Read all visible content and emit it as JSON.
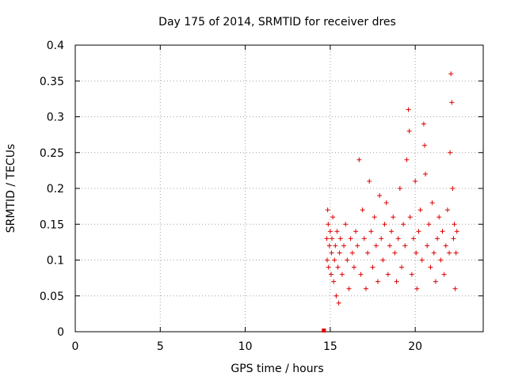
{
  "chart_data": {
    "type": "scatter",
    "title": "Day 175 of 2014, SRMTID for receiver dres",
    "xlabel": "GPS time / hours",
    "ylabel": "SRMTID / TECUs",
    "xlim": [
      0,
      24
    ],
    "ylim": [
      0,
      0.4
    ],
    "x_ticks": [
      0,
      5,
      10,
      15,
      20
    ],
    "x_tick_labels": [
      "0",
      "5",
      "10",
      "15",
      "20"
    ],
    "y_ticks": [
      0,
      0.05,
      0.1,
      0.15,
      0.2,
      0.25,
      0.3,
      0.35,
      0.4
    ],
    "y_tick_labels": [
      "0",
      "0.05",
      "0.1",
      "0.15",
      "0.2",
      "0.25",
      "0.3",
      "0.35",
      "0.4"
    ],
    "grid": true,
    "series": [
      {
        "name": "SRMTID",
        "color": "#e00000",
        "marker": "plus",
        "zero_points": {
          "x": [
            14.6,
            14.65
          ],
          "y": [
            0.0,
            0.0
          ]
        },
        "x": [
          14.8,
          14.82,
          14.85,
          14.88,
          14.9,
          14.95,
          15.0,
          15.05,
          15.08,
          15.1,
          15.15,
          15.2,
          15.25,
          15.3,
          15.35,
          15.4,
          15.45,
          15.5,
          15.55,
          15.6,
          15.7,
          15.8,
          15.9,
          16.0,
          16.1,
          16.2,
          16.3,
          16.4,
          16.5,
          16.6,
          16.7,
          16.8,
          16.9,
          17.0,
          17.1,
          17.2,
          17.3,
          17.4,
          17.5,
          17.6,
          17.7,
          17.8,
          17.9,
          18.0,
          18.1,
          18.2,
          18.3,
          18.4,
          18.5,
          18.6,
          18.7,
          18.8,
          18.9,
          19.0,
          19.1,
          19.2,
          19.3,
          19.4,
          19.5,
          19.6,
          19.65,
          19.7,
          19.8,
          19.9,
          20.0,
          20.05,
          20.1,
          20.2,
          20.3,
          20.4,
          20.5,
          20.55,
          20.6,
          20.7,
          20.8,
          20.9,
          21.0,
          21.1,
          21.2,
          21.3,
          21.4,
          21.5,
          21.6,
          21.7,
          21.8,
          21.9,
          22.0,
          22.05,
          22.1,
          22.15,
          22.2,
          22.25,
          22.3,
          22.35,
          22.4,
          22.45
        ],
        "y": [
          0.13,
          0.1,
          0.17,
          0.15,
          0.09,
          0.12,
          0.14,
          0.08,
          0.11,
          0.13,
          0.16,
          0.07,
          0.1,
          0.12,
          0.05,
          0.14,
          0.09,
          0.04,
          0.11,
          0.13,
          0.08,
          0.12,
          0.15,
          0.1,
          0.06,
          0.13,
          0.11,
          0.09,
          0.14,
          0.12,
          0.24,
          0.08,
          0.17,
          0.13,
          0.06,
          0.11,
          0.21,
          0.14,
          0.09,
          0.16,
          0.12,
          0.07,
          0.19,
          0.13,
          0.1,
          0.15,
          0.18,
          0.08,
          0.12,
          0.14,
          0.16,
          0.11,
          0.07,
          0.13,
          0.2,
          0.09,
          0.15,
          0.12,
          0.24,
          0.31,
          0.28,
          0.16,
          0.08,
          0.13,
          0.21,
          0.11,
          0.06,
          0.14,
          0.17,
          0.1,
          0.29,
          0.26,
          0.22,
          0.12,
          0.15,
          0.09,
          0.18,
          0.11,
          0.07,
          0.13,
          0.16,
          0.1,
          0.14,
          0.08,
          0.12,
          0.17,
          0.11,
          0.25,
          0.36,
          0.32,
          0.2,
          0.13,
          0.15,
          0.06,
          0.11,
          0.14
        ]
      }
    ]
  }
}
